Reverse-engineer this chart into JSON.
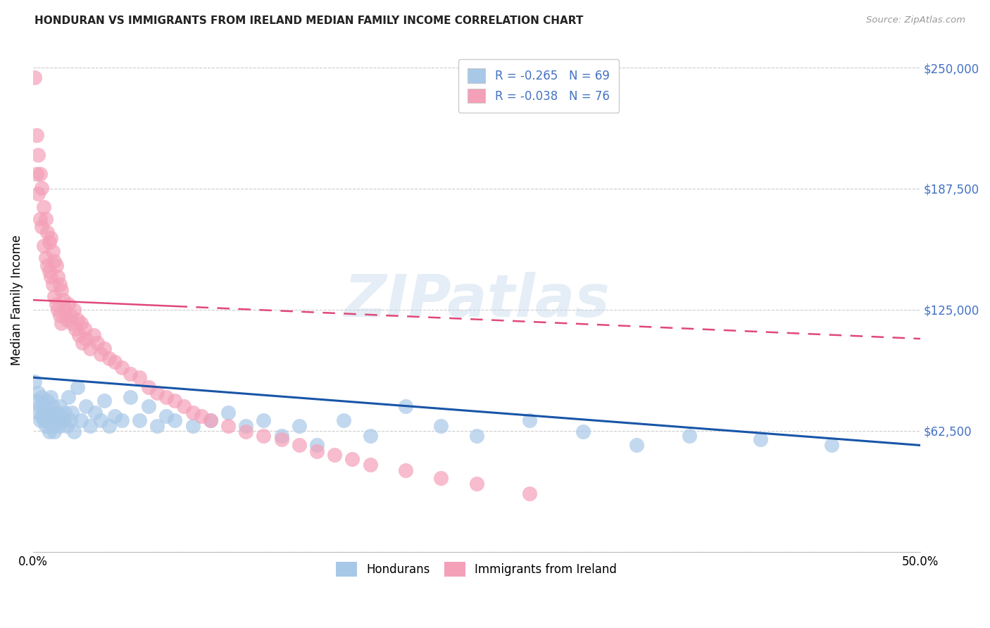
{
  "title": "HONDURAN VS IMMIGRANTS FROM IRELAND MEDIAN FAMILY INCOME CORRELATION CHART",
  "source": "Source: ZipAtlas.com",
  "ylabel": "Median Family Income",
  "yticks": [
    0,
    62500,
    125000,
    187500,
    250000
  ],
  "xmin": 0.0,
  "xmax": 0.5,
  "ymin": 0,
  "ymax": 260000,
  "blue_scatter_color": "#A8C8E8",
  "pink_scatter_color": "#F4A0B8",
  "blue_line_color": "#1855A8",
  "pink_line_color": "#E04878",
  "watermark": "ZIPatlas",
  "legend_R_blue": "-0.265",
  "legend_N_blue": "69",
  "legend_R_pink": "-0.038",
  "legend_N_pink": "76",
  "legend_text_color": "#4472C4",
  "hondurans_x": [
    0.001,
    0.002,
    0.003,
    0.003,
    0.004,
    0.004,
    0.005,
    0.005,
    0.006,
    0.006,
    0.007,
    0.007,
    0.008,
    0.008,
    0.009,
    0.009,
    0.01,
    0.01,
    0.011,
    0.011,
    0.012,
    0.012,
    0.013,
    0.014,
    0.015,
    0.015,
    0.016,
    0.017,
    0.018,
    0.019,
    0.02,
    0.021,
    0.022,
    0.023,
    0.025,
    0.027,
    0.03,
    0.032,
    0.035,
    0.038,
    0.04,
    0.043,
    0.046,
    0.05,
    0.055,
    0.06,
    0.065,
    0.07,
    0.075,
    0.08,
    0.09,
    0.1,
    0.11,
    0.12,
    0.13,
    0.14,
    0.15,
    0.16,
    0.175,
    0.19,
    0.21,
    0.23,
    0.25,
    0.28,
    0.31,
    0.34,
    0.37,
    0.41,
    0.45
  ],
  "hondurans_y": [
    88000,
    78000,
    82000,
    72000,
    75000,
    68000,
    80000,
    70000,
    75000,
    68000,
    72000,
    65000,
    78000,
    68000,
    72000,
    62000,
    80000,
    70000,
    75000,
    65000,
    70000,
    62000,
    72000,
    68000,
    75000,
    65000,
    70000,
    68000,
    72000,
    65000,
    80000,
    68000,
    72000,
    62000,
    85000,
    68000,
    75000,
    65000,
    72000,
    68000,
    78000,
    65000,
    70000,
    68000,
    80000,
    68000,
    75000,
    65000,
    70000,
    68000,
    65000,
    68000,
    72000,
    65000,
    68000,
    60000,
    65000,
    55000,
    68000,
    60000,
    75000,
    65000,
    60000,
    68000,
    62000,
    55000,
    60000,
    58000,
    55000
  ],
  "ireland_x": [
    0.001,
    0.002,
    0.002,
    0.003,
    0.003,
    0.004,
    0.004,
    0.005,
    0.005,
    0.006,
    0.006,
    0.007,
    0.007,
    0.008,
    0.008,
    0.009,
    0.009,
    0.01,
    0.01,
    0.011,
    0.011,
    0.012,
    0.012,
    0.013,
    0.013,
    0.014,
    0.014,
    0.015,
    0.015,
    0.016,
    0.016,
    0.017,
    0.018,
    0.019,
    0.02,
    0.021,
    0.022,
    0.023,
    0.024,
    0.025,
    0.026,
    0.027,
    0.028,
    0.029,
    0.03,
    0.032,
    0.034,
    0.036,
    0.038,
    0.04,
    0.043,
    0.046,
    0.05,
    0.055,
    0.06,
    0.065,
    0.07,
    0.075,
    0.08,
    0.085,
    0.09,
    0.095,
    0.1,
    0.11,
    0.12,
    0.13,
    0.14,
    0.15,
    0.16,
    0.17,
    0.18,
    0.19,
    0.21,
    0.23,
    0.25,
    0.28
  ],
  "ireland_y": [
    245000,
    215000,
    195000,
    205000,
    185000,
    195000,
    172000,
    188000,
    168000,
    178000,
    158000,
    172000,
    152000,
    165000,
    148000,
    160000,
    145000,
    162000,
    142000,
    155000,
    138000,
    150000,
    132000,
    148000,
    128000,
    142000,
    125000,
    138000,
    122000,
    135000,
    118000,
    130000,
    125000,
    120000,
    128000,
    122000,
    118000,
    125000,
    115000,
    120000,
    112000,
    118000,
    108000,
    115000,
    110000,
    105000,
    112000,
    108000,
    102000,
    105000,
    100000,
    98000,
    95000,
    92000,
    90000,
    85000,
    82000,
    80000,
    78000,
    75000,
    72000,
    70000,
    68000,
    65000,
    62000,
    60000,
    58000,
    55000,
    52000,
    50000,
    48000,
    45000,
    42000,
    38000,
    35000,
    30000
  ]
}
